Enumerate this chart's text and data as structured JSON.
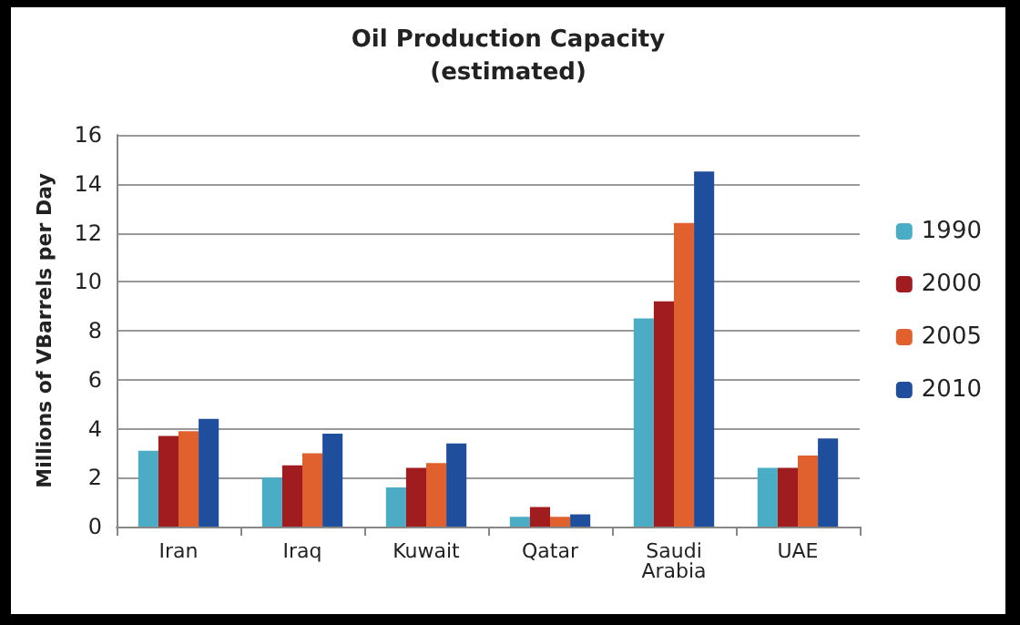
{
  "chart_data": {
    "type": "bar",
    "title": "Oil Production Capacity\n(estimated)",
    "ylabel": "Millions of VBarrels per Day",
    "categories": [
      "Iran",
      "Iraq",
      "Kuwait",
      "Qatar",
      "Saudi\nArabia",
      "UAE"
    ],
    "series": [
      {
        "name": "1990",
        "color": "#4bacc6",
        "values": [
          3.1,
          2.0,
          1.6,
          0.4,
          8.5,
          2.4
        ]
      },
      {
        "name": "2000",
        "color": "#a01c1e",
        "values": [
          3.7,
          2.5,
          2.4,
          0.8,
          9.2,
          2.4
        ]
      },
      {
        "name": "2005",
        "color": "#e0602e",
        "values": [
          3.9,
          3.0,
          2.6,
          0.4,
          12.4,
          2.9
        ]
      },
      {
        "name": "2010",
        "color": "#1f4e9c",
        "values": [
          4.4,
          3.8,
          3.4,
          0.5,
          14.5,
          3.6
        ]
      }
    ],
    "ylim": [
      0,
      16
    ],
    "yticks": [
      0,
      2,
      4,
      6,
      8,
      10,
      12,
      14,
      16
    ],
    "grid": "y",
    "legend": "right"
  }
}
